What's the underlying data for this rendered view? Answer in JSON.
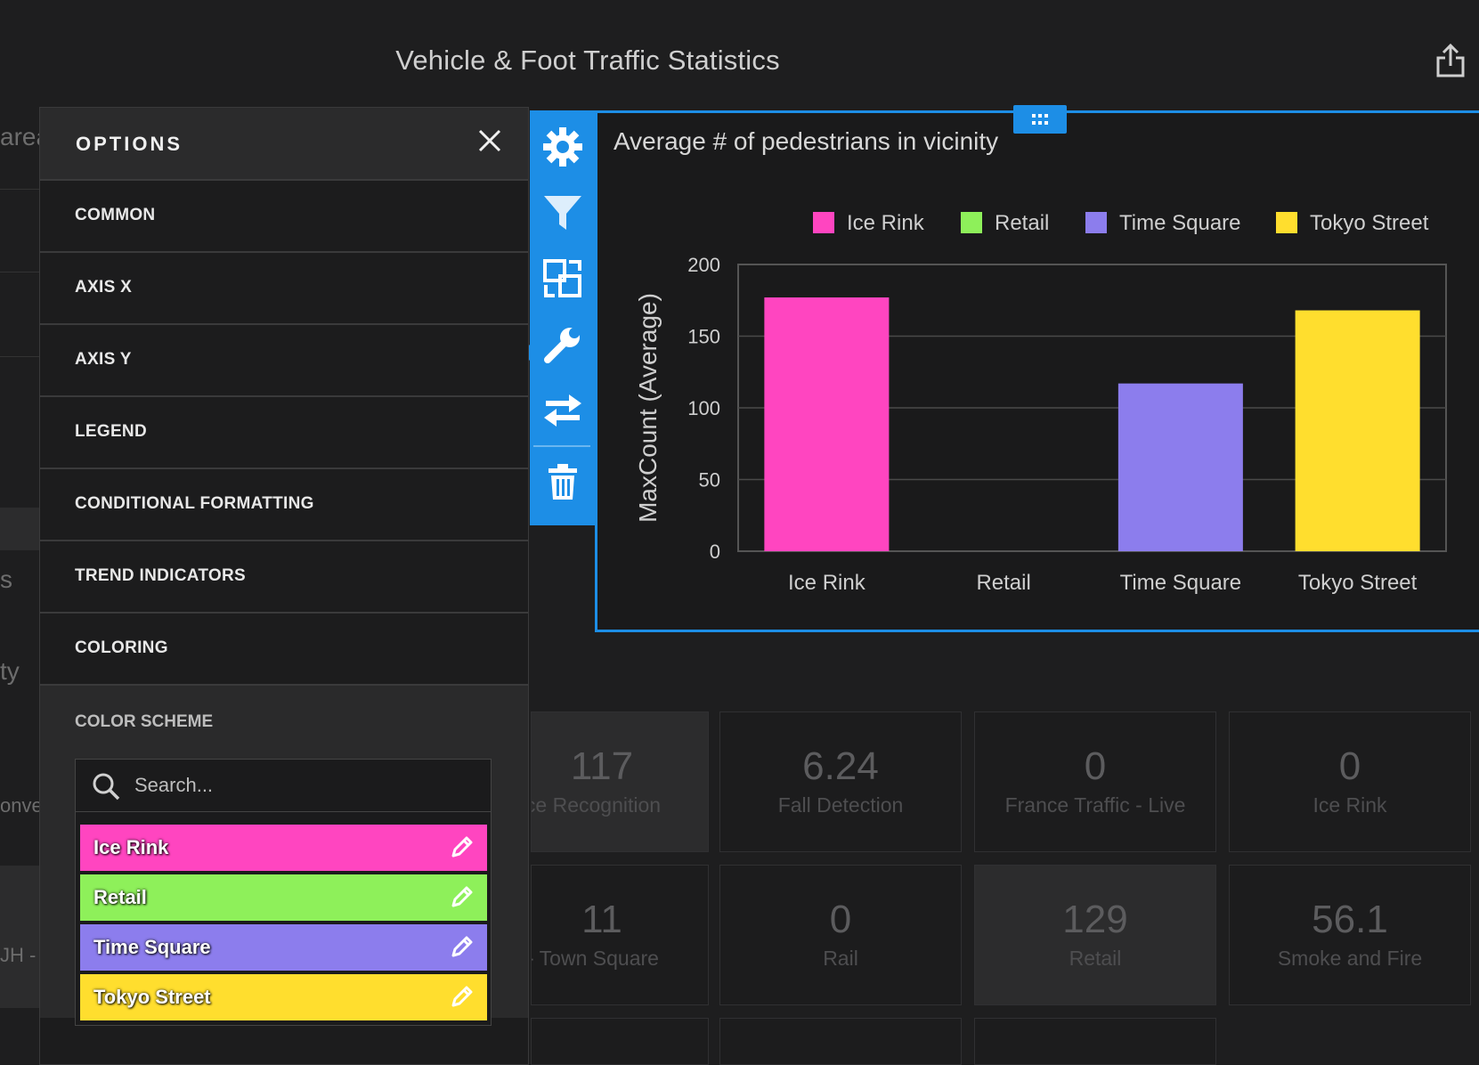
{
  "page": {
    "title": "Vehicle & Foot Traffic Statistics"
  },
  "left_strip": [
    "area",
    "s",
    "ty",
    "onve",
    "JH -"
  ],
  "options_panel": {
    "title": "OPTIONS",
    "items": [
      "COMMON",
      "AXIS X",
      "AXIS Y",
      "LEGEND",
      "CONDITIONAL FORMATTING",
      "TREND INDICATORS",
      "COLORING"
    ],
    "section_label": "COLOR SCHEME",
    "search_placeholder": "Search...",
    "colors": [
      {
        "name": "Ice Rink",
        "color": "#ff45c0"
      },
      {
        "name": "Retail",
        "color": "#8ef05a"
      },
      {
        "name": "Time Square",
        "color": "#8c7ded"
      },
      {
        "name": "Tokyo Street",
        "color": "#ffde2e"
      }
    ]
  },
  "toolbar": [
    "gear-icon",
    "filter-icon",
    "resize-icon",
    "wrench-icon",
    "swap-icon",
    "trash-icon"
  ],
  "widget": {
    "title": "Average # of pedestrians in vicinity"
  },
  "chart_data": {
    "type": "bar",
    "categories": [
      "Ice Rink",
      "Retail",
      "Time Square",
      "Tokyo Street"
    ],
    "values": [
      177,
      0,
      117,
      168
    ],
    "colors": [
      "#ff45c0",
      "#8ef05a",
      "#8c7ded",
      "#ffde2e"
    ],
    "legend": [
      "Ice Rink",
      "Retail",
      "Time Square",
      "Tokyo Street"
    ],
    "legend_position": "top",
    "ylabel": "MaxCount (Average)",
    "xlabel": "",
    "ylim": [
      0,
      200
    ],
    "yticks": [
      "0",
      "50",
      "100",
      "150",
      "200"
    ],
    "grid": true
  },
  "tiles": [
    {
      "value": "117",
      "label": "ce Recognition",
      "highlight": true
    },
    {
      "value": "6.24",
      "label": "Fall Detection",
      "highlight": false
    },
    {
      "value": "0",
      "label": "France Traffic - Live",
      "highlight": false
    },
    {
      "value": "0",
      "label": "Ice Rink",
      "highlight": false
    },
    {
      "value": "11",
      "label": "- Town Square",
      "highlight": false
    },
    {
      "value": "0",
      "label": "Rail",
      "highlight": false
    },
    {
      "value": "129",
      "label": "Retail",
      "highlight": true
    },
    {
      "value": "56.1",
      "label": "Smoke and Fire",
      "highlight": false
    }
  ]
}
